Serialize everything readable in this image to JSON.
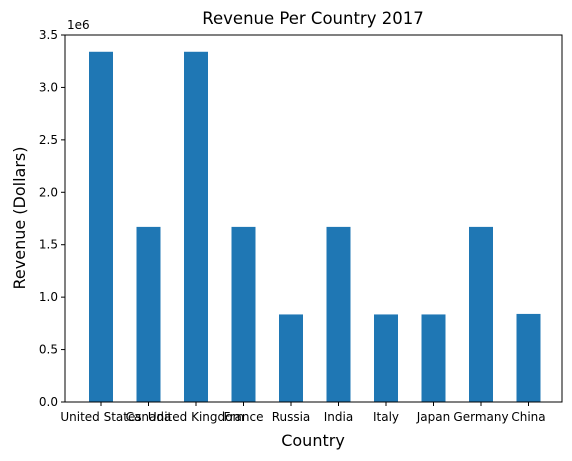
{
  "chart_data": {
    "type": "bar",
    "title": "Revenue Per Country 2017",
    "xlabel": "Country",
    "ylabel": "Revenue (Dollars)",
    "y_offset_label": "1e6",
    "categories": [
      "United States",
      "Canada",
      "United Kingdom",
      "France",
      "Russia",
      "India",
      "Italy",
      "Japan",
      "Germany",
      "China"
    ],
    "values": [
      3340000,
      1670000,
      3340000,
      1670000,
      835000,
      1670000,
      835000,
      835000,
      1670000,
      840000
    ],
    "ylim": [
      0,
      3500000
    ],
    "yticks": [
      0,
      500000,
      1000000,
      1500000,
      2000000,
      2500000,
      3000000,
      3500000
    ],
    "ytick_labels": [
      "0.0",
      "0.5",
      "1.0",
      "1.5",
      "2.0",
      "2.5",
      "3.0",
      "3.5"
    ],
    "grid": false,
    "bar_color": "#1f77b4"
  }
}
